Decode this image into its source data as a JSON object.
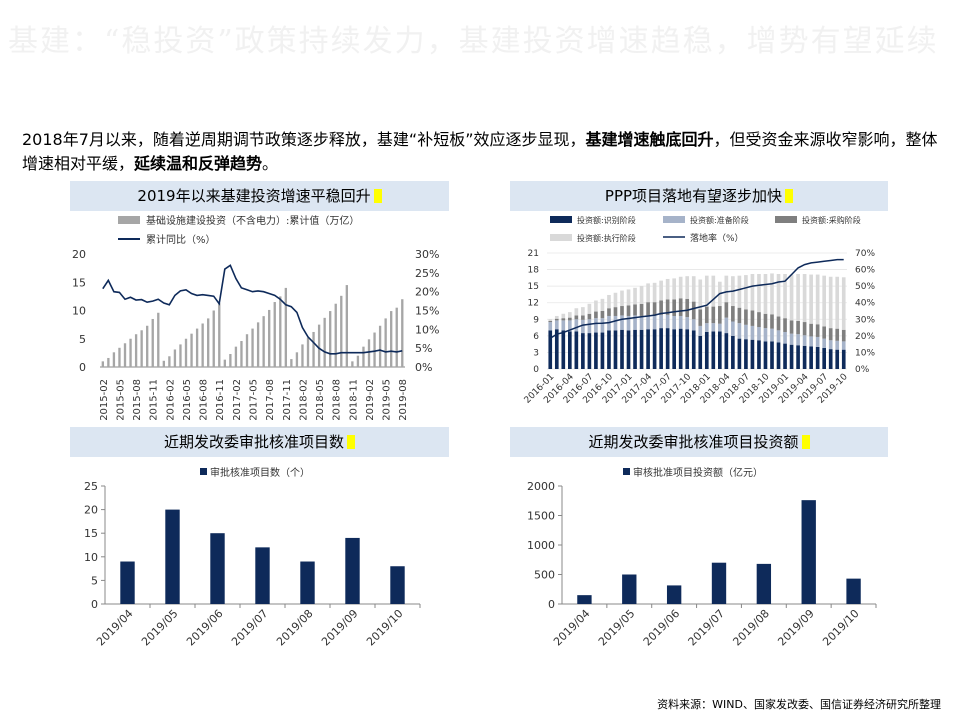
{
  "header": {
    "title": "基建：“稳投资”政策持续发力，基建投资增速趋稳，增势有望延续"
  },
  "intro": {
    "part1": "2018年7月以来，随着逆周期调节政策逐步释放，基建“补短板”效应逐步显现，",
    "bold1": "基建增速触底回升",
    "part2": "，但受资金来源收窄影响，整体增速相对平缓，",
    "bold2": "延续温和反弹趋势",
    "part3": "。"
  },
  "source": "资料来源：WIND、国家发改委、国信证券经济研究所整理",
  "chart_data": [
    {
      "type": "bar",
      "title": "2019年以来基建投资增速平稳回升",
      "legend": [
        "基础设施建设投资（不含电力）:累计值（万亿）",
        "累计同比（%）"
      ],
      "x_ticks": [
        "2015-02",
        "2015-05",
        "2015-08",
        "2015-11",
        "2016-02",
        "2016-05",
        "2016-08",
        "2016-11",
        "2017-02",
        "2017-05",
        "2017-08",
        "2017-11",
        "2018-02",
        "2018-05",
        "2018-08",
        "2018-11",
        "2019-02",
        "2019-05",
        "2019-08"
      ],
      "left_ylim": [
        0,
        20
      ],
      "left_ticks": [
        "0",
        "5",
        "10",
        "15",
        "20"
      ],
      "right_ylim": [
        0,
        30
      ],
      "right_ticks": [
        "0%",
        "5%",
        "10%",
        "15%",
        "20%",
        "25%",
        "30%"
      ],
      "bars": [
        1.0,
        1.6,
        2.6,
        3.4,
        4.2,
        5.0,
        5.8,
        6.5,
        7.3,
        8.5,
        9.6,
        1.1,
        1.9,
        3.1,
        4.0,
        5.0,
        5.9,
        6.8,
        7.7,
        8.6,
        10.0,
        11.3,
        1.3,
        2.3,
        3.6,
        4.6,
        5.8,
        6.8,
        7.9,
        9.0,
        10.1,
        11.5,
        12.5,
        14.0,
        1.4,
        2.6,
        4.0,
        5.2,
        6.2,
        7.5,
        8.7,
        9.9,
        11.2,
        12.6,
        14.5,
        1.0,
        2.0,
        3.6,
        4.9,
        6.1,
        7.3,
        8.6,
        9.9,
        10.5,
        12.0
      ],
      "line": [
        20.8,
        23.0,
        20.0,
        19.8,
        18.0,
        18.5,
        17.8,
        17.9,
        17.2,
        17.5,
        18.0,
        17.0,
        16.5,
        19.0,
        20.2,
        20.5,
        19.5,
        19.0,
        19.2,
        19.0,
        18.8,
        16.8,
        26.0,
        27.0,
        23.5,
        21.0,
        20.5,
        20.0,
        20.2,
        20.0,
        19.5,
        19.0,
        18.0,
        16.5,
        16.0,
        14.5,
        10.5,
        8.0,
        6.5,
        5.0,
        4.0,
        3.5,
        3.5,
        3.8,
        3.8,
        3.8,
        3.8,
        3.8,
        4.0,
        4.2,
        4.5,
        4.0,
        4.2,
        4.0,
        4.3
      ]
    },
    {
      "type": "bar",
      "title": "PPP项目落地有望逐步加快",
      "legend": [
        "投资额:识别阶段",
        "投资额:准备阶段",
        "投资额:采购阶段",
        "投资额:执行阶段",
        "落地率（%）"
      ],
      "x_ticks": [
        "2016-01",
        "2016-04",
        "2016-07",
        "2016-10",
        "2017-01",
        "2017-04",
        "2017-07",
        "2017-10",
        "2018-01",
        "2018-04",
        "2018-07",
        "2018-10",
        "2019-01",
        "2019-04",
        "2019-07",
        "2019-10"
      ],
      "left_ylim": [
        0,
        21
      ],
      "left_ticks": [
        "0",
        "3",
        "6",
        "9",
        "12",
        "15",
        "18",
        "21"
      ],
      "right_ylim": [
        0,
        70
      ],
      "right_ticks": [
        "0%",
        "10%",
        "20%",
        "30%",
        "40%",
        "50%",
        "60%",
        "70%"
      ],
      "identification": [
        7.0,
        7.2,
        7.0,
        6.8,
        6.8,
        6.5,
        6.5,
        6.6,
        6.6,
        7.0,
        7.0,
        7.1,
        7.0,
        7.1,
        7.1,
        7.2,
        7.2,
        7.4,
        7.4,
        7.2,
        7.3,
        7.2,
        7.0,
        6.0,
        6.7,
        6.8,
        6.8,
        6.5,
        6.0,
        5.5,
        5.4,
        5.3,
        5.2,
        5.0,
        5.0,
        4.8,
        4.6,
        4.4,
        4.3,
        4.2,
        4.1,
        4.0,
        3.8,
        3.6,
        3.5,
        3.5
      ],
      "preparation": [
        1.5,
        1.6,
        1.8,
        2.0,
        2.2,
        2.4,
        2.5,
        2.6,
        2.6,
        2.6,
        2.6,
        2.6,
        2.6,
        2.6,
        2.5,
        2.5,
        2.4,
        2.4,
        2.4,
        2.4,
        2.3,
        2.2,
        2.0,
        1.8,
        1.6,
        1.5,
        1.4,
        2.8,
        2.6,
        2.8,
        2.6,
        2.5,
        2.4,
        2.4,
        2.3,
        2.2,
        2.1,
        2.0,
        2.0,
        1.9,
        1.8,
        1.8,
        1.7,
        1.6,
        1.6,
        1.5
      ],
      "procurement": [
        0.2,
        0.3,
        0.4,
        0.5,
        0.7,
        0.8,
        1.0,
        1.2,
        1.3,
        1.4,
        1.6,
        1.7,
        1.9,
        2.0,
        2.2,
        2.4,
        2.5,
        2.6,
        2.8,
        3.0,
        3.2,
        3.3,
        3.2,
        3.0,
        3.0,
        3.0,
        3.2,
        2.8,
        2.8,
        2.8,
        2.8,
        2.8,
        2.7,
        2.6,
        2.6,
        2.5,
        2.5,
        2.4,
        2.4,
        2.4,
        2.3,
        2.3,
        2.2,
        2.2,
        2.2,
        2.1
      ],
      "execution": [
        0.3,
        0.5,
        0.8,
        1.0,
        1.3,
        1.5,
        1.8,
        2.0,
        2.2,
        2.4,
        2.6,
        2.8,
        2.9,
        3.0,
        3.2,
        3.4,
        3.5,
        3.6,
        3.7,
        3.8,
        3.9,
        4.1,
        4.6,
        5.4,
        5.6,
        5.6,
        4.4,
        4.8,
        5.4,
        5.8,
        6.2,
        6.6,
        6.9,
        7.2,
        7.4,
        7.7,
        8.0,
        8.3,
        8.5,
        8.7,
        8.9,
        9.0,
        9.2,
        9.3,
        9.4,
        9.5
      ],
      "line": [
        18.5,
        21.0,
        22.0,
        23.5,
        25.0,
        26.5,
        27.0,
        27.5,
        27.6,
        28.0,
        29.0,
        30.0,
        30.5,
        31.0,
        31.5,
        32.0,
        32.5,
        33.5,
        34.0,
        34.5,
        35.0,
        35.5,
        36.5,
        37.5,
        38.5,
        42.0,
        45.5,
        46.5,
        47.0,
        48.0,
        49.0,
        50.0,
        50.5,
        51.0,
        51.5,
        52.5,
        53.0,
        57.0,
        61.0,
        63.0,
        64.0,
        64.5,
        65.0,
        65.5,
        66.0,
        66.0
      ]
    },
    {
      "type": "bar",
      "title": "近期发改委审批核准项目数",
      "legend": [
        "审批核准项目数（个）"
      ],
      "categories": [
        "2019/04",
        "2019/05",
        "2019/06",
        "2019/07",
        "2019/08",
        "2019/09",
        "2019/10"
      ],
      "values": [
        9,
        20,
        15,
        12,
        9,
        14,
        8
      ],
      "ylim": [
        0,
        25
      ],
      "y_ticks": [
        "0",
        "5",
        "10",
        "15",
        "20",
        "25"
      ]
    },
    {
      "type": "bar",
      "title": "近期发改委审批核准项目投资额",
      "legend": [
        "审核批准项目投资额（亿元）"
      ],
      "categories": [
        "2019/04",
        "2019/05",
        "2019/06",
        "2019/07",
        "2019/08",
        "2019/09",
        "2019/10"
      ],
      "values": [
        150,
        500,
        315,
        700,
        680,
        1760,
        430
      ],
      "ylim": [
        0,
        2000
      ],
      "y_ticks": [
        "0",
        "500",
        "1000",
        "1500",
        "2000"
      ]
    }
  ],
  "colors": {
    "navy": "#0e2a5a",
    "gray_bar": "#a6a6a6",
    "prep": "#a6b3c9",
    "proc": "#7f7f7f",
    "exec": "#d9d9d9",
    "header_bg": "#dce6f2",
    "highlight": "#ffff00"
  }
}
